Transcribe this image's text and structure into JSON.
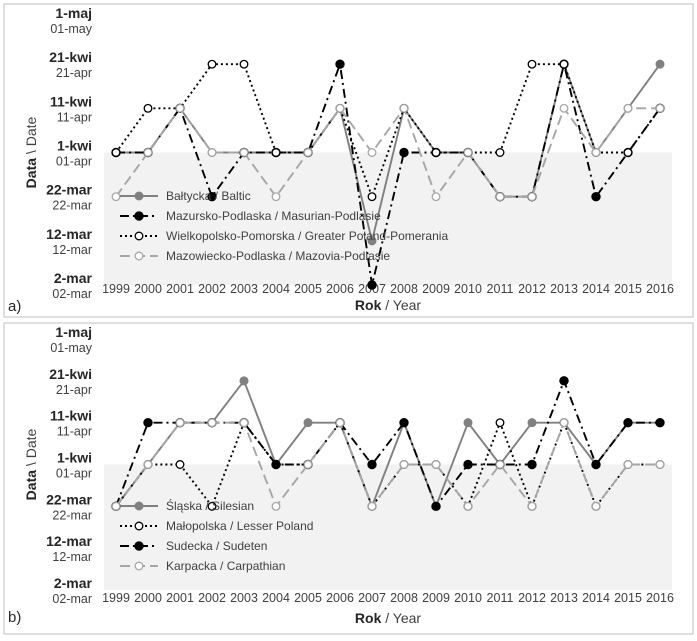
{
  "chart_data": [
    {
      "type": "line",
      "panel_label": "a)",
      "x_title": {
        "bold": "Rok",
        "rest": " / Year"
      },
      "y_title": {
        "bold": "Data",
        "rest": " \\ Date"
      },
      "x": [
        "1999",
        "2000",
        "2001",
        "2002",
        "2003",
        "2004",
        "2005",
        "2006",
        "2007",
        "2008",
        "2009",
        "2010",
        "2011",
        "2012",
        "2013",
        "2014",
        "2015",
        "2016"
      ],
      "y_levels": [
        {
          "main": "1-maj",
          "sub": "01-may"
        },
        {
          "main": "21-kwi",
          "sub": "21-apr"
        },
        {
          "main": "11-kwi",
          "sub": "11-apr"
        },
        {
          "main": "1-kwi",
          "sub": "01-apr"
        },
        {
          "main": "22-mar",
          "sub": "22-mar"
        },
        {
          "main": "12-mar",
          "sub": "12-mar"
        },
        {
          "main": "2-mar",
          "sub": "02-mar"
        }
      ],
      "ylim": [
        0,
        60
      ],
      "shaded_below": 30,
      "legend_position": "bottom-left",
      "series": [
        {
          "name": "Bałtycka / Baltic",
          "color": "#808080",
          "dash": "solid",
          "marker": "filled-gray",
          "values": [
            30,
            30,
            40,
            30,
            30,
            30,
            30,
            40,
            10,
            40,
            30,
            30,
            20,
            20,
            50,
            30,
            40,
            50
          ]
        },
        {
          "name": "Mazursko-Podlaska / Masurian-Podlasie",
          "color": "#000000",
          "dash": "dashdot",
          "marker": "filled-black",
          "values": [
            30,
            30,
            40,
            20,
            30,
            30,
            30,
            50,
            0,
            30,
            30,
            30,
            20,
            20,
            50,
            20,
            30,
            40
          ]
        },
        {
          "name": "Wielkopolsko-Pomorska / Greater Poland-Pomerania",
          "color": "#000000",
          "dash": "dotted",
          "marker": "open-black",
          "values": [
            30,
            40,
            40,
            50,
            50,
            30,
            30,
            40,
            20,
            40,
            30,
            30,
            30,
            50,
            50,
            30,
            30,
            40
          ]
        },
        {
          "name": "Mazowiecko-Podlaska / Mazovia-Podlasie",
          "color": "#a6a6a6",
          "dash": "dashed",
          "marker": "open-gray",
          "values": [
            20,
            30,
            40,
            30,
            30,
            20,
            30,
            40,
            30,
            40,
            20,
            30,
            20,
            20,
            40,
            30,
            40,
            40
          ]
        }
      ]
    },
    {
      "type": "line",
      "panel_label": "b)",
      "x_title": {
        "bold": "Rok",
        "rest": " / Year"
      },
      "y_title": {
        "bold": "Data",
        "rest": " \\ Date"
      },
      "x": [
        "1999",
        "2000",
        "2001",
        "2002",
        "2003",
        "2004",
        "2005",
        "2006",
        "2007",
        "2008",
        "2009",
        "2010",
        "2011",
        "2012",
        "2013",
        "2014",
        "2015",
        "2016"
      ],
      "y_levels": [
        {
          "main": "1-maj",
          "sub": "01-may"
        },
        {
          "main": "21-kwi",
          "sub": "21-apr"
        },
        {
          "main": "11-kwi",
          "sub": "11-apr"
        },
        {
          "main": "1-kwi",
          "sub": "01-apr"
        },
        {
          "main": "22-mar",
          "sub": "22-mar"
        },
        {
          "main": "12-mar",
          "sub": "12-mar"
        },
        {
          "main": "2-mar",
          "sub": "02-mar"
        }
      ],
      "ylim": [
        0,
        60
      ],
      "shaded_below": 30,
      "legend_position": "bottom-left",
      "series": [
        {
          "name": "Śląska / Silesian",
          "color": "#808080",
          "dash": "solid",
          "marker": "filled-gray",
          "values": [
            20,
            30,
            40,
            40,
            50,
            30,
            40,
            40,
            20,
            40,
            20,
            40,
            30,
            40,
            40,
            30,
            40,
            40
          ]
        },
        {
          "name": "Małopolska / Lesser Poland",
          "color": "#000000",
          "dash": "dotted",
          "marker": "open-black",
          "values": [
            20,
            30,
            30,
            20,
            40,
            30,
            30,
            40,
            20,
            30,
            30,
            20,
            40,
            20,
            40,
            20,
            30,
            30
          ]
        },
        {
          "name": "Sudecka / Sudeten",
          "color": "#000000",
          "dash": "dashdot",
          "marker": "filled-black",
          "values": [
            20,
            40,
            40,
            40,
            40,
            30,
            30,
            40,
            30,
            40,
            20,
            30,
            30,
            30,
            50,
            30,
            40,
            40
          ]
        },
        {
          "name": "Karpacka / Carpathian",
          "color": "#a6a6a6",
          "dash": "dashed",
          "marker": "open-gray",
          "values": [
            20,
            30,
            40,
            40,
            40,
            20,
            30,
            40,
            20,
            30,
            30,
            20,
            30,
            20,
            40,
            20,
            30,
            30
          ]
        }
      ]
    }
  ]
}
